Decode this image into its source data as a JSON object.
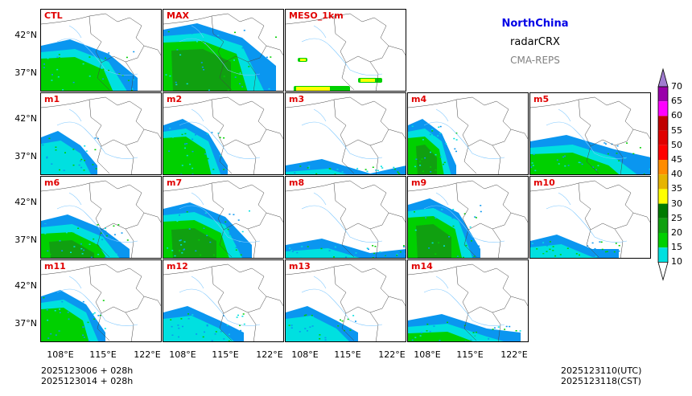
{
  "titles": {
    "region": "NorthChina",
    "variable": "radarCRX",
    "model": "CMA-REPS"
  },
  "panels": [
    {
      "label": "CTL",
      "row": 0,
      "col": 0
    },
    {
      "label": "MAX",
      "row": 0,
      "col": 1
    },
    {
      "label": "MESO_1km",
      "row": 0,
      "col": 2
    },
    {
      "label": "m1",
      "row": 1,
      "col": 0
    },
    {
      "label": "m2",
      "row": 1,
      "col": 1
    },
    {
      "label": "m3",
      "row": 1,
      "col": 2
    },
    {
      "label": "m4",
      "row": 1,
      "col": 3
    },
    {
      "label": "m5",
      "row": 1,
      "col": 4
    },
    {
      "label": "m6",
      "row": 2,
      "col": 0
    },
    {
      "label": "m7",
      "row": 2,
      "col": 1
    },
    {
      "label": "m8",
      "row": 2,
      "col": 2
    },
    {
      "label": "m9",
      "row": 2,
      "col": 3
    },
    {
      "label": "m10",
      "row": 2,
      "col": 4
    },
    {
      "label": "m11",
      "row": 3,
      "col": 0
    },
    {
      "label": "m12",
      "row": 3,
      "col": 1
    },
    {
      "label": "m13",
      "row": 3,
      "col": 2
    },
    {
      "label": "m14",
      "row": 3,
      "col": 3
    }
  ],
  "axes": {
    "y_ticks": [
      "42°N",
      "37°N"
    ],
    "x_ticks": [
      "108°E",
      "115°E",
      "122°E"
    ]
  },
  "colorbar": {
    "levels": [
      "10",
      "15",
      "20",
      "25",
      "30",
      "35",
      "40",
      "45",
      "50",
      "55",
      "60",
      "65",
      "70"
    ],
    "colors": [
      "#0a96f0",
      "#00e0e0",
      "#00d000",
      "#10a010",
      "#007a00",
      "#ffff00",
      "#e6b400",
      "#ff8c00",
      "#ff0000",
      "#e00000",
      "#c00000",
      "#ff00ff",
      "#9900aa",
      "#a07cd0"
    ]
  },
  "footer": {
    "init_line1": "2025123006  +  028h",
    "init_line2": "2025123014  +  028h",
    "valid_utc": "2025123110(UTC)",
    "valid_cst": "2025123118(CST)"
  },
  "map_colors": {
    "border": "#444444",
    "river": "#7ec8ff"
  }
}
